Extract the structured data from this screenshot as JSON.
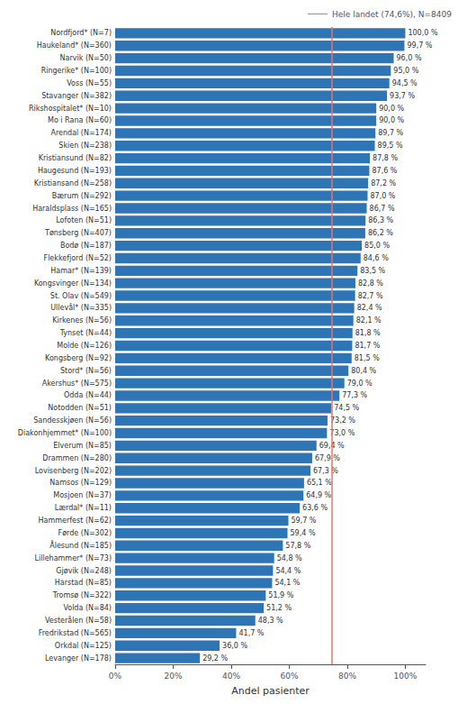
{
  "chart_data": {
    "type": "bar",
    "orientation": "horizontal",
    "categories": [
      "Nordfjord* (N=7)",
      "Haukeland* (N=360)",
      "Narvik (N=50)",
      "Ringerike* (N=100)",
      "Voss (N=55)",
      "Stavanger (N=382)",
      "Rikshospitalet* (N=10)",
      "Mo i Rana (N=60)",
      "Arendal (N=174)",
      "Skien (N=238)",
      "Kristiansund (N=82)",
      "Haugesund (N=193)",
      "Kristiansand (N=258)",
      "Bærum (N=292)",
      "Haraldsplass (N=165)",
      "Lofoten (N=51)",
      "Tønsberg (N=407)",
      "Bodø (N=187)",
      "Flekkefjord (N=52)",
      "Hamar* (N=139)",
      "Kongsvinger (N=134)",
      "St. Olav (N=549)",
      "Ullevål* (N=335)",
      "Kirkenes (N=56)",
      "Tynset (N=44)",
      "Molde (N=126)",
      "Kongsberg (N=92)",
      "Stord* (N=56)",
      "Akershus* (N=575)",
      "Odda (N=44)",
      "Notodden (N=51)",
      "Sandesskjøen (N=56)",
      "Diakonhjemmet* (N=100)",
      "Elverum (N=85)",
      "Drammen (N=280)",
      "Lovisenberg (N=202)",
      "Namsos (N=129)",
      "Mosjoen (N=37)",
      "Lærdal* (N=11)",
      "Hammerfest (N=62)",
      "Førde (N=302)",
      "Ålesund (N=185)",
      "Lillehammer* (N=73)",
      "Gjøvik (N=248)",
      "Harstad (N=85)",
      "Tromsø (N=322)",
      "Volda (N=84)",
      "Vesterålen (N=58)",
      "Fredrikstad (N=565)",
      "Orkdal (N=125)",
      "Levanger (N=178)"
    ],
    "values": [
      100.0,
      99.7,
      96.0,
      95.0,
      94.5,
      93.7,
      90.0,
      90.0,
      89.7,
      89.5,
      87.8,
      87.6,
      87.2,
      87.0,
      86.7,
      86.3,
      86.2,
      85.0,
      84.6,
      83.5,
      82.8,
      82.7,
      82.4,
      82.1,
      81.8,
      81.7,
      81.5,
      80.4,
      79.0,
      77.3,
      74.5,
      73.2,
      73.0,
      69.4,
      67.9,
      67.3,
      65.1,
      64.9,
      63.6,
      59.7,
      59.4,
      57.8,
      54.8,
      54.4,
      54.1,
      51.9,
      51.2,
      48.3,
      41.7,
      36.0,
      29.2
    ],
    "value_labels": [
      "100,0 %",
      "99,7 %",
      "96,0 %",
      "95,0 %",
      "94,5 %",
      "93,7 %",
      "90,0 %",
      "90,0 %",
      "89,7 %",
      "89,5 %",
      "87,8 %",
      "87,6 %",
      "87,2 %",
      "87,0 %",
      "86,7 %",
      "86,3 %",
      "86,2 %",
      "85,0 %",
      "84,6 %",
      "83,5 %",
      "82,8 %",
      "82,7 %",
      "82,4 %",
      "82,1 %",
      "81,8 %",
      "81,7 %",
      "81,5 %",
      "80,4 %",
      "79,0 %",
      "77,3 %",
      "74,5 %",
      "73,2 %",
      "73,0 %",
      "69,4 %",
      "67,9 %",
      "67,3 %",
      "65,1 %",
      "64,9 %",
      "63,6 %",
      "59,7 %",
      "59,4 %",
      "57,8 %",
      "54,8 %",
      "54,4 %",
      "54,1 %",
      "51,9 %",
      "51,2 %",
      "48,3 %",
      "41,7 %",
      "36,0 %",
      "29,2 %"
    ],
    "data_labels": true,
    "color": "#2E75B6",
    "xlabel": "Andel pasienter",
    "xlim": [
      0,
      107
    ],
    "xticks": [
      {
        "value": 0,
        "label": "0%"
      },
      {
        "value": 20,
        "label": "20%"
      },
      {
        "value": 40,
        "label": "40%"
      },
      {
        "value": 60,
        "label": "60%"
      },
      {
        "value": 80,
        "label": "80%"
      },
      {
        "value": 100,
        "label": "100%"
      }
    ],
    "reference_lines": [
      {
        "value": 74.6,
        "label": "Hele landet (74,6%), N=8409",
        "color": "#E8736B"
      }
    ],
    "legend": "upper right",
    "grid": false
  }
}
